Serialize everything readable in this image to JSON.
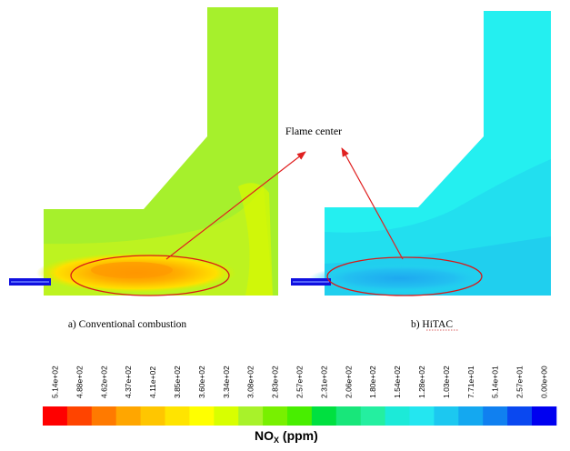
{
  "annotation": "Flame center",
  "panels": [
    {
      "caption": "a) Conventional combustion",
      "base_color": "#A6F02C"
    },
    {
      "caption": "b) HiTAC",
      "base_color": "#24EFF0"
    }
  ],
  "colorbar": {
    "title_main": "NO",
    "title_sub": "X",
    "title_unit": " (ppm)",
    "ticks": [
      "5.14e+02",
      "4.88e+02",
      "4.62e+02",
      "4.37e+02",
      "4.11e+02",
      "3.85e+02",
      "3.60e+02",
      "3.34e+02",
      "3.08e+02",
      "2.83e+02",
      "2.57e+02",
      "2.31e+02",
      "2.06e+02",
      "1.80e+02",
      "1.54e+02",
      "1.28e+02",
      "1.03e+02",
      "7.71e+01",
      "5.14e+01",
      "2.57e+01",
      "0.00e+00"
    ],
    "colors": [
      "#FF0000",
      "#FF4400",
      "#FF7A00",
      "#FFA600",
      "#FFC600",
      "#FFE400",
      "#FFFF00",
      "#D8FF00",
      "#A8F22A",
      "#78F000",
      "#48EE00",
      "#00E040",
      "#18E67A",
      "#24EFA0",
      "#1CEAD8",
      "#24E6F0",
      "#1CC8F0",
      "#14A8F0",
      "#1080F0",
      "#0A48F0",
      "#0000F0"
    ]
  }
}
